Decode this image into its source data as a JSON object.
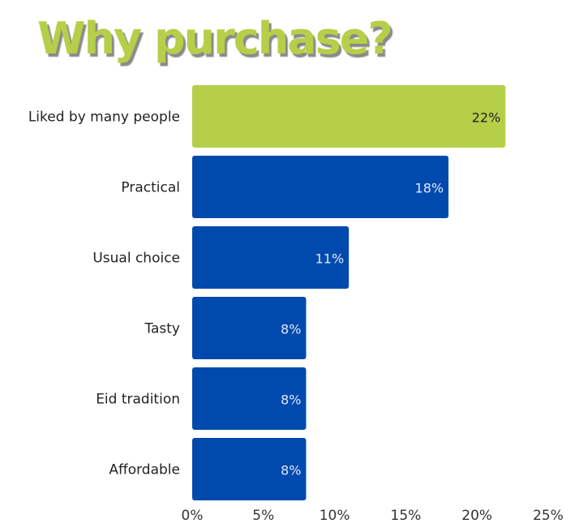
{
  "chart_data": {
    "type": "bar",
    "orientation": "horizontal",
    "title": "Why purchase?",
    "categories": [
      "Liked by many people",
      "Practical",
      "Usual choice",
      "Tasty",
      "Eid tradition",
      "Affordable"
    ],
    "values": [
      22,
      18,
      11,
      8,
      8,
      8
    ],
    "data_labels": [
      "22%",
      "18%",
      "11%",
      "8%",
      "8%",
      "8%"
    ],
    "xlim": [
      0,
      25
    ],
    "xticks": [
      0,
      5,
      10,
      15,
      20,
      25
    ],
    "xtick_labels": [
      "0%",
      "5%",
      "10%",
      "15%",
      "20%",
      "25%"
    ],
    "grid": false,
    "colors": {
      "highlight": "#b5cf48",
      "bar": "#004aad",
      "title": "#b5cf48",
      "title_shadow": "#8a8a8a"
    }
  }
}
